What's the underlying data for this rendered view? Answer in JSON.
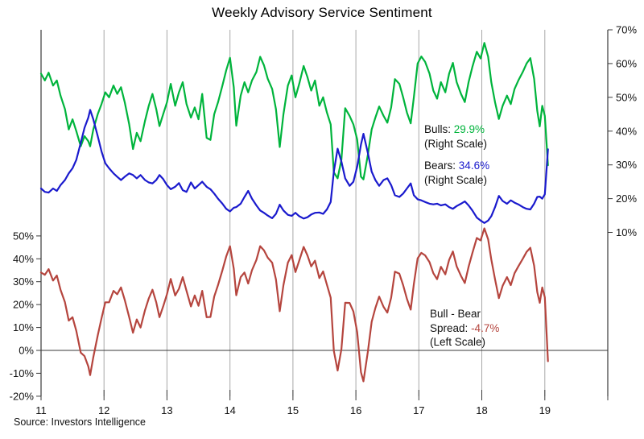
{
  "title": "Weekly Advisory Service Sentiment",
  "source": "Source: Investors Intelligence",
  "colors": {
    "bulls": "#00b43c",
    "bears": "#1a1acd",
    "spread": "#b5453e",
    "grid": "#a8a8a8",
    "axis": "#3a3a3a",
    "text": "#111111"
  },
  "annotations": {
    "bulls": {
      "label": "Bulls:",
      "value": "29.9%",
      "note": "(Right Scale)"
    },
    "bears": {
      "label": "Bears:",
      "value": "34.6%",
      "note": "(Right Scale)"
    },
    "spread": {
      "label1": "Bull - Bear",
      "label2": "Spread:",
      "value": "-4.7%",
      "note": "(Left Scale)"
    }
  },
  "chart_data": {
    "type": "line",
    "title": "Weekly Advisory Service Sentiment",
    "grid": "vertical-yearly",
    "x_axis": {
      "tick_labels": [
        "11",
        "12",
        "13",
        "14",
        "15",
        "16",
        "17",
        "18",
        "19"
      ],
      "range": [
        11,
        20
      ]
    },
    "left_axis": {
      "tick_labels": [
        "50%",
        "40%",
        "30%",
        "20%",
        "10%",
        "0%",
        "-10%",
        "-20%"
      ],
      "tick_values": [
        50,
        40,
        30,
        20,
        10,
        0,
        -10,
        -20
      ],
      "applies_to": "Bull - Bear Spread"
    },
    "right_axis": {
      "tick_labels": [
        "70%",
        "60%",
        "50%",
        "40%",
        "30%",
        "20%",
        "10%"
      ],
      "tick_values": [
        70,
        60,
        50,
        40,
        30,
        20,
        10
      ],
      "applies_to": "Bulls and Bears"
    },
    "series": [
      {
        "name": "Bulls",
        "scale": "right",
        "color": "#00b43c",
        "latest": "29.9%"
      },
      {
        "name": "Bears",
        "scale": "right",
        "color": "#1a1acd",
        "latest": "34.6%"
      },
      {
        "name": "Bull - Bear Spread",
        "scale": "left",
        "color": "#b5453e",
        "latest": "-4.7%"
      }
    ],
    "columns": [
      "year",
      "bulls_pct",
      "bears_pct",
      "bull_bear_spread_pct"
    ],
    "points": [
      [
        11.0,
        57.0,
        23.0,
        34.0
      ],
      [
        11.06,
        55.0,
        22.0,
        33.0
      ],
      [
        11.12,
        57.3,
        21.8,
        35.5
      ],
      [
        11.19,
        53.5,
        23.0,
        30.5
      ],
      [
        11.25,
        55.0,
        22.3,
        32.7
      ],
      [
        11.31,
        50.5,
        24.0,
        26.5
      ],
      [
        11.38,
        46.5,
        25.5,
        21.0
      ],
      [
        11.44,
        40.5,
        27.5,
        13.0
      ],
      [
        11.5,
        43.5,
        29.0,
        14.5
      ],
      [
        11.56,
        40.0,
        31.5,
        8.5
      ],
      [
        11.63,
        35.5,
        36.5,
        -1.0
      ],
      [
        11.69,
        38.5,
        41.0,
        -2.5
      ],
      [
        11.75,
        37.0,
        44.0,
        -7.0
      ],
      [
        11.78,
        35.5,
        46.3,
        -10.8
      ],
      [
        11.83,
        40.5,
        43.5,
        -3.0
      ],
      [
        11.9,
        45.0,
        38.5,
        6.5
      ],
      [
        11.96,
        48.0,
        34.0,
        14.0
      ],
      [
        12.02,
        51.5,
        30.5,
        21.0
      ],
      [
        12.08,
        50.0,
        29.0,
        21.0
      ],
      [
        12.15,
        53.5,
        27.5,
        26.0
      ],
      [
        12.21,
        51.0,
        26.5,
        24.5
      ],
      [
        12.27,
        53.0,
        25.5,
        27.5
      ],
      [
        12.33,
        48.5,
        26.5,
        22.0
      ],
      [
        12.4,
        42.0,
        27.5,
        14.5
      ],
      [
        12.46,
        34.7,
        27.0,
        7.7
      ],
      [
        12.52,
        39.5,
        26.0,
        13.5
      ],
      [
        12.58,
        37.0,
        27.0,
        10.0
      ],
      [
        12.65,
        43.0,
        25.5,
        17.5
      ],
      [
        12.71,
        47.5,
        24.8,
        22.7
      ],
      [
        12.77,
        51.0,
        24.5,
        26.5
      ],
      [
        12.83,
        46.5,
        25.5,
        21.0
      ],
      [
        12.88,
        41.5,
        27.0,
        14.5
      ],
      [
        12.94,
        45.0,
        25.8,
        19.2
      ],
      [
        13.0,
        48.5,
        24.0,
        24.5
      ],
      [
        13.06,
        54.0,
        22.8,
        31.2
      ],
      [
        13.13,
        47.5,
        23.5,
        24.0
      ],
      [
        13.19,
        51.5,
        24.6,
        26.9
      ],
      [
        13.25,
        54.5,
        22.5,
        32.0
      ],
      [
        13.31,
        48.0,
        22.0,
        26.0
      ],
      [
        13.38,
        44.0,
        24.8,
        19.2
      ],
      [
        13.44,
        47.0,
        23.0,
        24.0
      ],
      [
        13.5,
        43.5,
        24.0,
        19.5
      ],
      [
        13.56,
        51.0,
        25.0,
        26.0
      ],
      [
        13.63,
        38.0,
        23.5,
        14.5
      ],
      [
        13.69,
        37.4,
        22.8,
        14.6
      ],
      [
        13.75,
        45.0,
        21.5,
        23.5
      ],
      [
        13.81,
        48.5,
        20.0,
        28.5
      ],
      [
        13.88,
        53.5,
        18.5,
        35.0
      ],
      [
        13.94,
        58.0,
        17.0,
        41.0
      ],
      [
        14.0,
        61.7,
        16.2,
        45.5
      ],
      [
        14.06,
        53.0,
        17.3,
        35.7
      ],
      [
        14.1,
        41.6,
        17.5,
        24.1
      ],
      [
        14.17,
        50.5,
        18.5,
        32.0
      ],
      [
        14.23,
        54.5,
        20.5,
        34.0
      ],
      [
        14.29,
        51.5,
        22.3,
        29.2
      ],
      [
        14.35,
        55.0,
        20.0,
        35.0
      ],
      [
        14.42,
        57.5,
        18.0,
        39.5
      ],
      [
        14.48,
        62.0,
        16.5,
        45.5
      ],
      [
        14.54,
        59.5,
        15.8,
        43.7
      ],
      [
        14.6,
        55.5,
        15.0,
        40.5
      ],
      [
        14.67,
        52.5,
        14.2,
        38.3
      ],
      [
        14.73,
        46.5,
        15.5,
        31.0
      ],
      [
        14.79,
        35.3,
        18.2,
        17.1
      ],
      [
        14.85,
        45.0,
        16.5,
        28.5
      ],
      [
        14.92,
        53.5,
        15.2,
        38.3
      ],
      [
        14.98,
        56.5,
        14.9,
        41.6
      ],
      [
        15.04,
        50.0,
        15.8,
        34.2
      ],
      [
        15.1,
        54.0,
        14.8,
        39.2
      ],
      [
        15.17,
        59.3,
        14.1,
        45.2
      ],
      [
        15.23,
        56.0,
        14.5,
        41.5
      ],
      [
        15.29,
        52.0,
        15.3,
        36.7
      ],
      [
        15.35,
        55.0,
        15.8,
        39.2
      ],
      [
        15.42,
        47.5,
        15.9,
        31.6
      ],
      [
        15.48,
        50.0,
        15.5,
        34.5
      ],
      [
        15.54,
        45.5,
        16.8,
        28.7
      ],
      [
        15.6,
        42.0,
        19.0,
        23.0
      ],
      [
        15.65,
        27.8,
        28.0,
        -0.2
      ],
      [
        15.71,
        26.0,
        34.8,
        -8.8
      ],
      [
        15.77,
        31.5,
        31.0,
        0.5
      ],
      [
        15.83,
        46.8,
        26.0,
        20.8
      ],
      [
        15.9,
        44.5,
        23.8,
        20.7
      ],
      [
        15.96,
        42.0,
        25.0,
        17.0
      ],
      [
        16.02,
        37.5,
        29.5,
        8.0
      ],
      [
        16.08,
        26.5,
        36.0,
        -9.5
      ],
      [
        16.12,
        25.7,
        39.2,
        -13.5
      ],
      [
        16.19,
        33.0,
        33.5,
        -0.5
      ],
      [
        16.25,
        40.5,
        28.0,
        12.5
      ],
      [
        16.31,
        44.0,
        25.5,
        18.5
      ],
      [
        16.37,
        47.3,
        23.8,
        23.5
      ],
      [
        16.44,
        44.5,
        25.5,
        19.0
      ],
      [
        16.5,
        42.5,
        26.0,
        16.5
      ],
      [
        16.56,
        47.0,
        24.0,
        23.0
      ],
      [
        16.62,
        55.4,
        21.0,
        34.4
      ],
      [
        16.69,
        54.0,
        20.5,
        33.5
      ],
      [
        16.75,
        50.0,
        21.5,
        28.5
      ],
      [
        16.81,
        45.5,
        23.0,
        22.5
      ],
      [
        16.87,
        42.3,
        24.5,
        17.8
      ],
      [
        16.92,
        50.0,
        21.0,
        29.0
      ],
      [
        16.98,
        60.0,
        19.8,
        40.2
      ],
      [
        17.04,
        62.1,
        19.5,
        42.6
      ],
      [
        17.1,
        60.5,
        19.0,
        41.5
      ],
      [
        17.17,
        57.0,
        18.5,
        38.5
      ],
      [
        17.23,
        52.0,
        18.3,
        33.7
      ],
      [
        17.29,
        49.6,
        18.5,
        31.1
      ],
      [
        17.35,
        54.5,
        18.0,
        36.5
      ],
      [
        17.42,
        51.5,
        18.3,
        33.2
      ],
      [
        17.48,
        57.0,
        17.5,
        39.5
      ],
      [
        17.54,
        60.2,
        17.0,
        43.2
      ],
      [
        17.6,
        54.5,
        17.8,
        36.7
      ],
      [
        17.67,
        51.0,
        18.5,
        32.5
      ],
      [
        17.73,
        48.6,
        19.2,
        29.4
      ],
      [
        17.79,
        54.5,
        18.0,
        36.5
      ],
      [
        17.85,
        59.0,
        16.5,
        42.5
      ],
      [
        17.92,
        63.5,
        14.4,
        49.1
      ],
      [
        17.98,
        61.5,
        13.5,
        48.0
      ],
      [
        18.04,
        66.1,
        12.8,
        53.3
      ],
      [
        18.1,
        62.0,
        13.5,
        48.5
      ],
      [
        18.15,
        54.5,
        14.8,
        39.7
      ],
      [
        18.21,
        48.5,
        17.5,
        31.0
      ],
      [
        18.27,
        43.6,
        20.8,
        22.8
      ],
      [
        18.33,
        47.5,
        19.3,
        28.2
      ],
      [
        18.4,
        50.5,
        18.5,
        32.0
      ],
      [
        18.46,
        48.0,
        19.5,
        28.5
      ],
      [
        18.52,
        52.5,
        18.8,
        33.7
      ],
      [
        18.58,
        55.0,
        18.3,
        36.7
      ],
      [
        18.65,
        57.5,
        17.5,
        40.0
      ],
      [
        18.71,
        60.0,
        17.0,
        43.0
      ],
      [
        18.77,
        61.6,
        16.8,
        44.8
      ],
      [
        18.83,
        55.5,
        18.5,
        37.0
      ],
      [
        18.88,
        46.0,
        20.5,
        25.5
      ],
      [
        18.92,
        41.4,
        20.6,
        20.8
      ],
      [
        18.96,
        47.5,
        20.0,
        27.5
      ],
      [
        19.0,
        44.5,
        21.3,
        23.2
      ],
      [
        19.05,
        29.9,
        34.6,
        -4.7
      ]
    ]
  }
}
